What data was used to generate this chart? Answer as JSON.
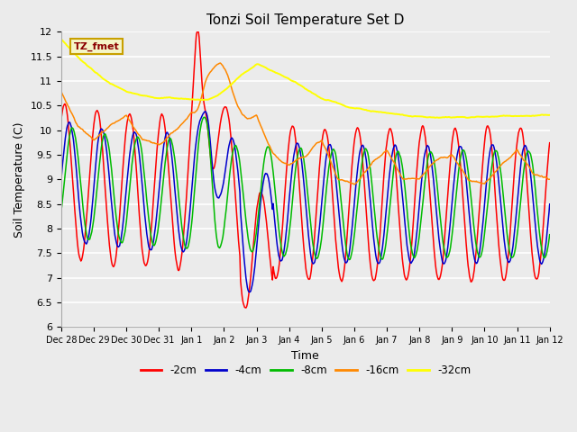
{
  "title": "Tonzi Soil Temperature Set D",
  "xlabel": "Time",
  "ylabel": "Soil Temperature (C)",
  "ylim": [
    6.0,
    12.0
  ],
  "yticks": [
    6.0,
    6.5,
    7.0,
    7.5,
    8.0,
    8.5,
    9.0,
    9.5,
    10.0,
    10.5,
    11.0,
    11.5,
    12.0
  ],
  "background_color": "#ebebeb",
  "legend_label": "TZ_fmet",
  "legend_box_color": "#f5f5c8",
  "legend_box_edge": "#c8a000",
  "series_colors": {
    "-2cm": "#ff0000",
    "-4cm": "#0000cc",
    "-8cm": "#00bb00",
    "-16cm": "#ff8800",
    "-32cm": "#ffff00"
  },
  "x_tick_labels": [
    "Dec 28",
    "Dec 29",
    "Dec 30",
    "Dec 31",
    "Jan 1",
    "Jan 2",
    "Jan 3",
    "Jan 4",
    "Jan 5",
    "Jan 6",
    "Jan 7",
    "Jan 8",
    "Jan 9",
    "Jan 10",
    "Jan 11",
    "Jan 12"
  ],
  "n_days": 15,
  "pts": 720
}
